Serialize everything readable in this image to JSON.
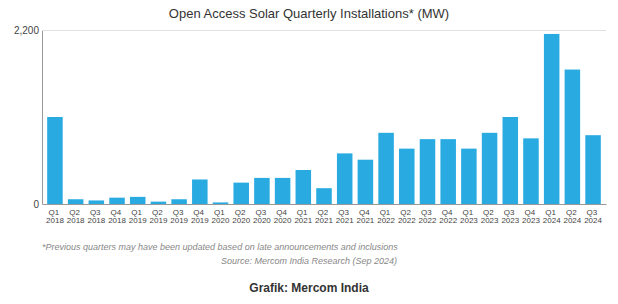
{
  "chart_data": {
    "type": "bar",
    "title": "Open Access Solar Quarterly Installations* (MW)",
    "categories": [
      "Q1 2018",
      "Q2 2018",
      "Q3 2018",
      "Q4 2018",
      "Q1 2019",
      "Q2 2019",
      "Q3 2019",
      "Q4 2019",
      "Q1 2020",
      "Q2 2020",
      "Q3 2020",
      "Q4 2020",
      "Q1 2021",
      "Q2 2021",
      "Q3 2021",
      "Q4 2021",
      "Q1 2022",
      "Q2 2022",
      "Q3 2022",
      "Q4 2022",
      "Q1 2023",
      "Q2 2023",
      "Q3 2023",
      "Q4 2023",
      "Q1 2024",
      "Q2 2024",
      "Q3 2024"
    ],
    "values": [
      1100,
      60,
      45,
      80,
      90,
      30,
      60,
      310,
      20,
      270,
      330,
      330,
      430,
      200,
      640,
      560,
      900,
      700,
      820,
      820,
      700,
      900,
      1100,
      830,
      2150,
      1700,
      870
    ],
    "color": "#29ABE2",
    "ylim": [
      0,
      2200
    ],
    "yticks": [
      0,
      {
        "value": 2200,
        "label": "2,200"
      }
    ],
    "grid": true,
    "annotations": [
      "*Previous quarters may have been updated based on late announcements and inclusions",
      "Source: Mercom India Research (Sep 2024)",
      "Grafik: Mercom India"
    ]
  }
}
